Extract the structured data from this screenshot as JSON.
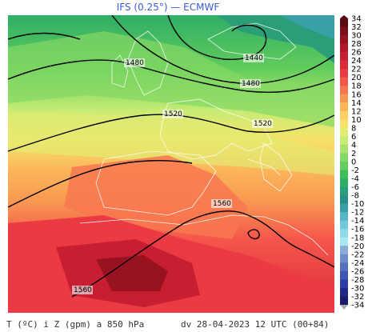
{
  "title": "IFS (0.25°) — ECMWF",
  "footer": {
    "variable": "T (ºC) i Z (gpm) a 850 hPa",
    "valid": "dv 28-04-2023 12 UTC (00+84)"
  },
  "contours": [
    {
      "label": "1440"
    },
    {
      "label": "1440"
    },
    {
      "label": "1480"
    },
    {
      "label": "1480"
    },
    {
      "label": "1520"
    },
    {
      "label": "1520"
    },
    {
      "label": "1560"
    },
    {
      "label": "1560"
    }
  ],
  "colorbar": {
    "ticks": [
      "34",
      "32",
      "30",
      "28",
      "26",
      "24",
      "22",
      "20",
      "18",
      "16",
      "14",
      "12",
      "10",
      "8",
      "6",
      "4",
      "2",
      "0",
      "-2",
      "-4",
      "-6",
      "-8",
      "-10",
      "-12",
      "-14",
      "-16",
      "-18",
      "-20",
      "-22",
      "-24",
      "-26",
      "-28",
      "-30",
      "-32",
      "-34"
    ],
    "colors": [
      "#5a0a12",
      "#7a0e1a",
      "#981222",
      "#b0182a",
      "#c81e32",
      "#dc2a3c",
      "#ec3a44",
      "#f5574b",
      "#f87750",
      "#f99a52",
      "#fbb65a",
      "#fcd062",
      "#f7e26a",
      "#e2eb72",
      "#c6ec74",
      "#a6e26c",
      "#84d864",
      "#62cc5c",
      "#3fbd58",
      "#2fae66",
      "#2a9e78",
      "#2a8e8a",
      "#3aa0a8",
      "#56b4c4",
      "#70c8dc",
      "#8cdcea",
      "#a8e8f2",
      "#8aa8d8",
      "#6e8ccc",
      "#5470c0",
      "#3c56b4",
      "#2c3ea2",
      "#222a88",
      "#1a1a6e"
    ]
  },
  "colors": {
    "title": "#3b5bd6",
    "contour": "#000000",
    "coast": "#ffffff"
  }
}
